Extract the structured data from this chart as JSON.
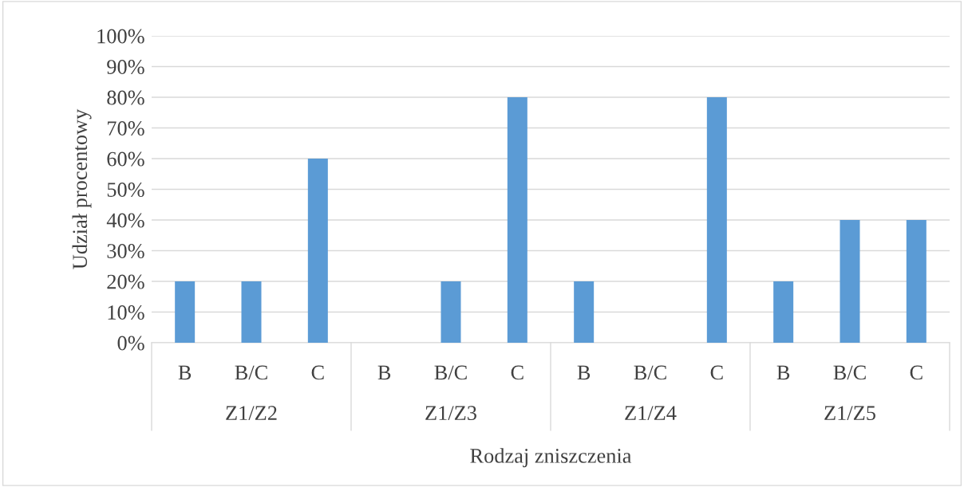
{
  "chart_data": {
    "type": "bar",
    "ylabel": "Udział procentowy",
    "xlabel": "Rodzaj zniszczenia",
    "categories": [
      "B",
      "B/C",
      "C",
      "B",
      "B/C",
      "C",
      "B",
      "B/C",
      "C",
      "B",
      "B/C",
      "C"
    ],
    "annotations": [
      "Z1/Z2",
      "Z1/Z3",
      "Z1/Z4",
      "Z1/Z5"
    ],
    "values": [
      20,
      20,
      60,
      0,
      20,
      80,
      20,
      0,
      80,
      20,
      40,
      40
    ],
    "color": "#5b9bd5",
    "ylim": [
      0,
      100
    ],
    "yticks": [
      {
        "value": 0,
        "label": "0%"
      },
      {
        "value": 10,
        "label": "10%"
      },
      {
        "value": 20,
        "label": "20%"
      },
      {
        "value": 30,
        "label": "30%"
      },
      {
        "value": 40,
        "label": "40%"
      },
      {
        "value": 50,
        "label": "50%"
      },
      {
        "value": 60,
        "label": "60%"
      },
      {
        "value": 70,
        "label": "70%"
      },
      {
        "value": 80,
        "label": "80%"
      },
      {
        "value": 90,
        "label": "90%"
      },
      {
        "value": 100,
        "label": "100%"
      }
    ],
    "grid": "y",
    "legend": false
  }
}
